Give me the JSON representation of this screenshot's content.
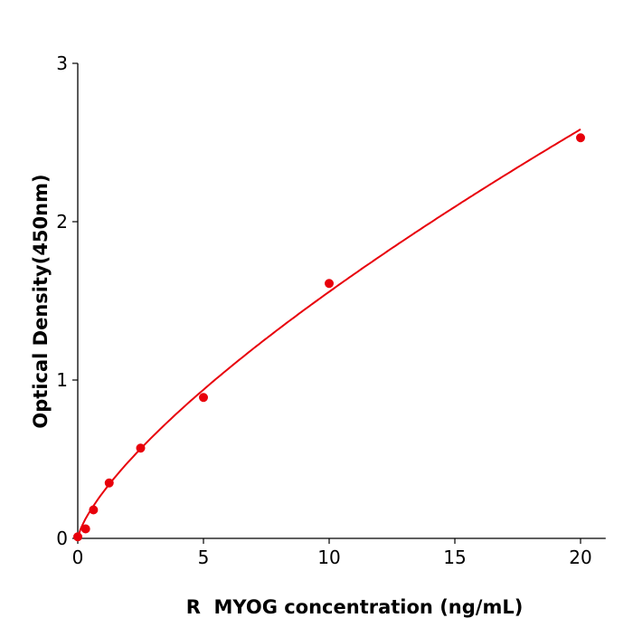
{
  "chart_data": {
    "type": "scatter",
    "title": "",
    "xlabel": "R  MYOG concentration (ng/mL)",
    "ylabel": "Optical Density(450nm)",
    "xlim": [
      0,
      21
    ],
    "ylim": [
      0,
      3
    ],
    "xticks": [
      0,
      5,
      10,
      15,
      20
    ],
    "yticks": [
      0,
      1,
      2,
      3
    ],
    "grid": false,
    "color": "#e8000b",
    "series": [
      {
        "x": [
          0,
          0.3125,
          0.625,
          1.25,
          2.5,
          5,
          10,
          20
        ],
        "y": [
          0.01,
          0.06,
          0.18,
          0.35,
          0.57,
          0.89,
          1.61,
          2.53
        ]
      }
    ],
    "fit": {
      "type": "power",
      "a": 0.29,
      "b": 0.73
    }
  }
}
